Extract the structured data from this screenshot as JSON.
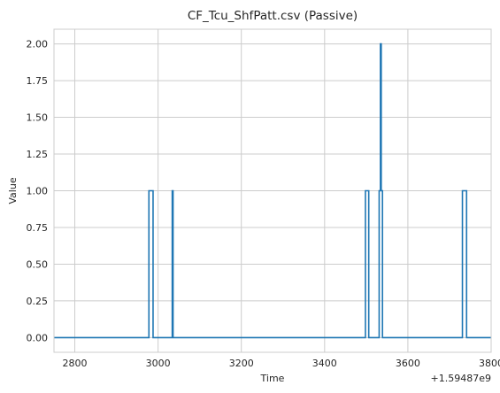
{
  "chart_data": {
    "type": "line",
    "title": "CF_Tcu_ShfPatt.csv (Passive)",
    "xlabel": "Time",
    "ylabel": "Value",
    "x_offset_label": "+1.59487e9",
    "xlim": [
      2750,
      3800
    ],
    "ylim": [
      -0.1,
      2.1
    ],
    "x_ticks": [
      2800,
      3000,
      3200,
      3400,
      3600,
      3800
    ],
    "y_ticks": [
      0.0,
      0.25,
      0.5,
      0.75,
      1.0,
      1.25,
      1.5,
      1.75,
      2.0
    ],
    "y_tick_labels": [
      "0.00",
      "0.25",
      "0.50",
      "0.75",
      "1.00",
      "1.25",
      "1.50",
      "1.75",
      "2.00"
    ],
    "grid": true,
    "step": "post",
    "series": [
      {
        "color": "#1f77b4",
        "x": [
          2750,
          2978,
          2988,
          3034,
          3036,
          3498,
          3506,
          3531,
          3534,
          3536,
          3539,
          3731,
          3741,
          3800
        ],
        "y": [
          0,
          1,
          0,
          1,
          0,
          1,
          0,
          1,
          2,
          1,
          0,
          1,
          0,
          0
        ]
      }
    ]
  }
}
